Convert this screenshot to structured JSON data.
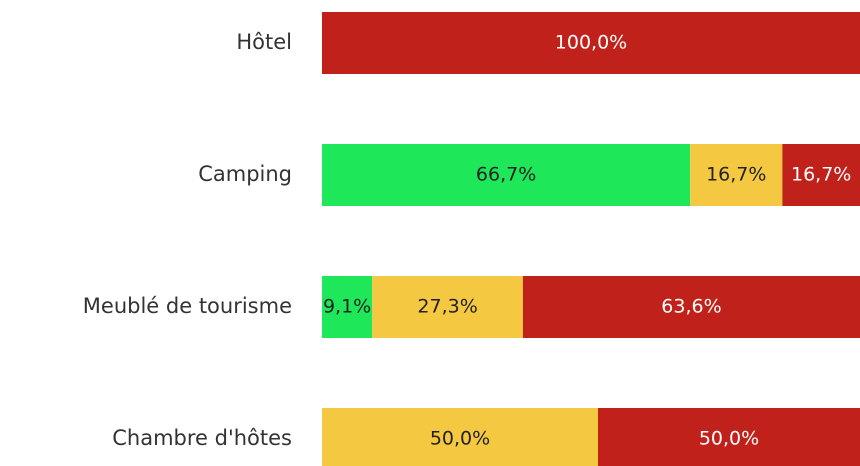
{
  "chart_data": {
    "type": "stacked-barh",
    "categories": [
      "Hôtel",
      "Camping",
      "Meublé de tourisme",
      "Chambre d'hôtes"
    ],
    "series": [
      {
        "color": "#1ee85a",
        "values": [
          0,
          66.7,
          9.1,
          0
        ],
        "value_labels": [
          null,
          "66,7%",
          "9,1%",
          null
        ]
      },
      {
        "color": "#f5c842",
        "values": [
          0,
          16.7,
          27.3,
          50
        ],
        "value_labels": [
          null,
          "16,7%",
          "27,3%",
          "50,0%"
        ]
      },
      {
        "color": "#c0211a",
        "values": [
          100,
          16.7,
          63.6,
          50
        ],
        "value_labels": [
          "100,0%",
          "16,7%",
          "63,6%",
          "50,0%"
        ]
      }
    ],
    "xlim": [
      0,
      100
    ]
  }
}
